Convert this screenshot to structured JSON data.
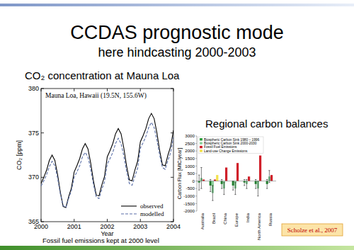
{
  "slide": {
    "title": "CCDAS prognostic mode",
    "subtitle": "here hindcasting 2000-2003",
    "citation": "Scholze et al., 2007"
  },
  "chart_data": [
    {
      "type": "line",
      "title": "CO₂ concentration at Mauna Loa",
      "subtitle": "Mauna Loa, Hawaii (19.5N, 155.6W)",
      "annotation": "Fossil fuel emissions kept at 2000 level",
      "x_label": "Year",
      "y_label": "CO₂ [ppm]",
      "x": [
        2000,
        2000.083,
        2000.167,
        2000.25,
        2000.333,
        2000.417,
        2000.5,
        2000.583,
        2000.667,
        2000.75,
        2000.833,
        2000.917,
        2001,
        2001.083,
        2001.167,
        2001.25,
        2001.333,
        2001.417,
        2001.5,
        2001.583,
        2001.667,
        2001.75,
        2001.833,
        2001.917,
        2002,
        2002.083,
        2002.167,
        2002.25,
        2002.333,
        2002.417,
        2002.5,
        2002.583,
        2002.667,
        2002.75,
        2002.833,
        2002.917,
        2003,
        2003.083,
        2003.167,
        2003.25,
        2003.333,
        2003.417,
        2003.5,
        2003.583,
        2003.667,
        2003.75,
        2003.833,
        2003.917,
        2004
      ],
      "series": [
        {
          "name": "observed",
          "color": "#000000",
          "line_style": "solid",
          "values": [
            369.3,
            370.0,
            370.8,
            371.9,
            372.5,
            371.9,
            370.3,
            368.3,
            366.7,
            366.6,
            367.8,
            368.8,
            370.6,
            371.3,
            372.1,
            373.2,
            373.8,
            373.2,
            371.6,
            369.6,
            368.0,
            367.9,
            369.1,
            370.1,
            372.3,
            373.0,
            373.8,
            374.9,
            375.5,
            374.9,
            373.3,
            371.3,
            369.7,
            369.6,
            370.8,
            371.8,
            374.0,
            374.7,
            375.5,
            376.6,
            377.2,
            376.6,
            375.0,
            373.0,
            371.4,
            371.3,
            372.5,
            373.5,
            375.3
          ]
        },
        {
          "name": "modelled",
          "color": "#5a6fa8",
          "line_style": "dashed",
          "values": [
            369.0,
            369.6,
            370.3,
            371.2,
            371.8,
            371.3,
            369.9,
            368.1,
            366.8,
            366.6,
            367.6,
            368.5,
            370.0,
            370.6,
            371.3,
            372.3,
            372.8,
            372.3,
            370.9,
            369.2,
            367.8,
            367.6,
            368.6,
            369.5,
            371.5,
            372.1,
            372.8,
            373.8,
            374.4,
            373.8,
            372.4,
            370.7,
            369.3,
            369.1,
            370.1,
            371.0,
            373.3,
            373.9,
            374.6,
            375.6,
            376.2,
            375.6,
            374.2,
            372.5,
            371.1,
            370.9,
            371.9,
            372.8,
            374.5
          ]
        }
      ],
      "xlim": [
        2000,
        2004
      ],
      "ylim": [
        365,
        380
      ],
      "xticks": [
        2000,
        2001,
        2002,
        2003,
        2004
      ],
      "yticks": [
        365,
        370,
        375,
        380
      ],
      "legend": "bottom-right",
      "grid": false
    },
    {
      "type": "bar",
      "title": "Regional carbon balances",
      "y_label": "Carbon Flux [MtC/year]",
      "categories": [
        "Australia",
        "Brazil",
        "China",
        "Europe",
        "India",
        "North America",
        "Russia"
      ],
      "series": [
        {
          "name": "Biospheric Carbon Sink 1980 – 1996",
          "color": "#2e9e3e",
          "values": [
            -100,
            -300,
            -200,
            -300,
            -100,
            -200,
            -200
          ],
          "errors": [
            500,
            400,
            300,
            300,
            200,
            300,
            300
          ]
        },
        {
          "name": "Biospheric Carbon Sink 2000-2030",
          "color": "#8fd19e",
          "values": [
            200,
            -800,
            -500,
            -500,
            -200,
            -500,
            300
          ],
          "errors": [
            700,
            500,
            400,
            400,
            300,
            500,
            400
          ]
        },
        {
          "name": "Fossil Fuel Emissions",
          "color": "#d0202a",
          "values": [
            100,
            100,
            900,
            1200,
            300,
            1700,
            400
          ]
        },
        {
          "name": "Land-use Change Emissions",
          "color": "#f2e14a",
          "values": [
            0,
            400,
            0,
            0,
            0,
            0,
            0
          ]
        }
      ],
      "ylim": [
        -2000,
        3000
      ],
      "yticks": [
        -2000,
        -1500,
        -1000,
        -500,
        0,
        500,
        1000,
        1500,
        2000,
        2500,
        3000
      ],
      "legend": "top-left",
      "grid": false
    }
  ]
}
